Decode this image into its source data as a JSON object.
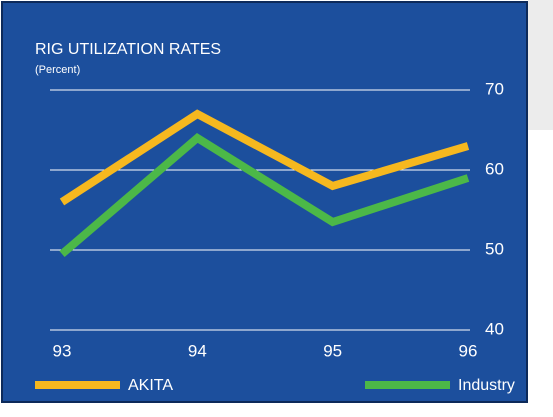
{
  "chart_data": {
    "type": "line",
    "title": "RIG UTILIZATION RATES",
    "subtitle": "(Percent)",
    "categories": [
      "93",
      "94",
      "95",
      "96"
    ],
    "series": [
      {
        "name": "AKITA",
        "color": "#f6b81f",
        "values": [
          56,
          67,
          58,
          63
        ]
      },
      {
        "name": "Industry",
        "color": "#4cb848",
        "values": [
          49.5,
          64,
          53.5,
          59
        ]
      }
    ],
    "ylim": [
      40,
      70
    ],
    "yticks": [
      40,
      50,
      60,
      70
    ],
    "grid": true,
    "y_axis_side": "right",
    "legend": "bottom"
  }
}
